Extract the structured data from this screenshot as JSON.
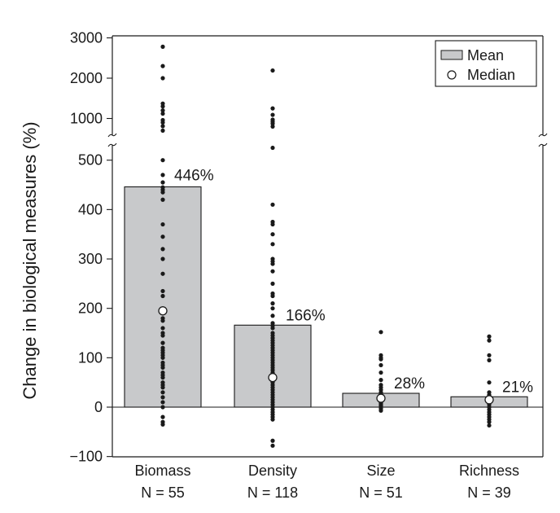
{
  "chart_data": {
    "type": "bar",
    "title": "",
    "ylabel": "Change in biological measures (%)",
    "xlabel": "",
    "axis_break": {
      "lower_range": [
        -100,
        550
      ],
      "upper_range": [
        500,
        3000
      ]
    },
    "ylim": [
      -100,
      3000
    ],
    "yticks_lower": [
      "−100",
      "0",
      "100",
      "200",
      "300",
      "400",
      "500"
    ],
    "yticks_upper": [
      "1000",
      "2000",
      "3000"
    ],
    "categories": [
      {
        "name": "Biomass",
        "n": "N = 55"
      },
      {
        "name": "Density",
        "n": "N = 118"
      },
      {
        "name": "Size",
        "n": "N = 51"
      },
      {
        "name": "Richness",
        "n": "N = 39"
      }
    ],
    "series": [
      {
        "name": "Mean",
        "values": [
          446,
          166,
          28,
          21
        ],
        "labels": [
          "446%",
          "166%",
          "28%",
          "21%"
        ]
      },
      {
        "name": "Median",
        "values": [
          195,
          60,
          18,
          15
        ]
      }
    ],
    "points": [
      [
        2780,
        2300,
        2000,
        1370,
        1300,
        1200,
        1120,
        960,
        900,
        810,
        700,
        500,
        470,
        455,
        445,
        440,
        435,
        420,
        370,
        345,
        320,
        300,
        270,
        235,
        225,
        200,
        190,
        180,
        175,
        160,
        150,
        145,
        130,
        120,
        115,
        110,
        105,
        100,
        90,
        85,
        80,
        70,
        65,
        60,
        50,
        45,
        40,
        30,
        20,
        10,
        0,
        -20,
        -30,
        -35
      ],
      [
        2190,
        1250,
        1090,
        970,
        920,
        870,
        800,
        525,
        410,
        375,
        370,
        350,
        330,
        300,
        295,
        290,
        275,
        250,
        230,
        225,
        210,
        200,
        185,
        170,
        165,
        160,
        150,
        145,
        140,
        135,
        130,
        125,
        120,
        115,
        110,
        105,
        100,
        95,
        90,
        85,
        80,
        75,
        70,
        65,
        60,
        55,
        50,
        45,
        40,
        35,
        30,
        25,
        20,
        15,
        10,
        5,
        0,
        -5,
        -10,
        -15,
        -20,
        -25,
        -68,
        -78
      ],
      [
        152,
        105,
        100,
        97,
        85,
        70,
        55,
        45,
        40,
        35,
        30,
        25,
        20,
        15,
        12,
        10,
        8,
        5,
        3,
        0,
        -3,
        -7
      ],
      [
        143,
        135,
        105,
        95,
        50,
        30,
        25,
        20,
        15,
        10,
        5,
        0,
        -5,
        -10,
        -15,
        -20,
        -25,
        -30,
        -37
      ]
    ],
    "legend": {
      "placement": "top-right",
      "entries": [
        "Mean",
        "Median"
      ]
    },
    "colors": {
      "bar_fill": "#c8c9cb",
      "bar_stroke": "#1a1a1a",
      "point": "#1a1a1a",
      "median_fill": "#ffffff"
    }
  }
}
